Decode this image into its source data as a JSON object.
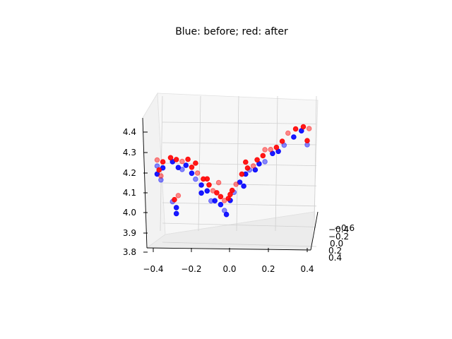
{
  "chart_data": {
    "type": "scatter",
    "projection": "3d",
    "title": "Blue: before; red: after",
    "x_ticks": [
      "−0.4",
      "−0.2",
      "0.0",
      "0.2",
      "0.4"
    ],
    "y_ticks": [
      "0.4",
      "0.2",
      "0.0",
      "−0.2",
      "−0.4",
      "−0.6"
    ],
    "z_ticks": [
      "3.8",
      "3.9",
      "4.0",
      "4.1",
      "4.2",
      "4.3",
      "4.4"
    ],
    "xlim": [
      -0.45,
      0.45
    ],
    "zlim": [
      3.8,
      4.45
    ],
    "series": [
      {
        "label": "before",
        "color": "#0000ff",
        "points": [
          {
            "x": -0.38,
            "z": 4.23
          },
          {
            "x": -0.35,
            "z": 4.22
          },
          {
            "x": -0.38,
            "z": 4.19
          },
          {
            "x": -0.36,
            "z": 4.16
          },
          {
            "x": -0.3,
            "z": 4.25
          },
          {
            "x": -0.27,
            "z": 4.22
          },
          {
            "x": -0.25,
            "z": 4.21
          },
          {
            "x": -0.23,
            "z": 4.23
          },
          {
            "x": -0.2,
            "z": 4.19
          },
          {
            "x": -0.18,
            "z": 4.16
          },
          {
            "x": -0.15,
            "z": 4.13
          },
          {
            "x": -0.12,
            "z": 4.1
          },
          {
            "x": -0.1,
            "z": 4.05
          },
          {
            "x": -0.08,
            "z": 4.05
          },
          {
            "x": -0.05,
            "z": 4.03
          },
          {
            "x": -0.03,
            "z": 4.0
          },
          {
            "x": -0.02,
            "z": 3.98
          },
          {
            "x": 0.0,
            "z": 4.05
          },
          {
            "x": 0.02,
            "z": 4.09
          },
          {
            "x": 0.05,
            "z": 4.14
          },
          {
            "x": 0.08,
            "z": 4.18
          },
          {
            "x": 0.1,
            "z": 4.2
          },
          {
            "x": 0.13,
            "z": 4.2
          },
          {
            "x": 0.15,
            "z": 4.23
          },
          {
            "x": 0.18,
            "z": 4.24
          },
          {
            "x": 0.22,
            "z": 4.28
          },
          {
            "x": 0.25,
            "z": 4.29
          },
          {
            "x": 0.28,
            "z": 4.32
          },
          {
            "x": 0.33,
            "z": 4.36
          },
          {
            "x": 0.37,
            "z": 4.39
          },
          {
            "x": 0.4,
            "z": 4.32
          },
          {
            "x": -0.28,
            "z": 4.02
          },
          {
            "x": -0.28,
            "z": 3.99
          },
          {
            "x": -0.3,
            "z": 4.05
          },
          {
            "x": -0.15,
            "z": 4.09
          },
          {
            "x": 0.07,
            "z": 4.12
          }
        ]
      },
      {
        "label": "after",
        "color": "#ff0000",
        "points": [
          {
            "x": -0.38,
            "z": 4.26
          },
          {
            "x": -0.35,
            "z": 4.25
          },
          {
            "x": -0.37,
            "z": 4.21
          },
          {
            "x": -0.36,
            "z": 4.18
          },
          {
            "x": -0.31,
            "z": 4.27
          },
          {
            "x": -0.28,
            "z": 4.26
          },
          {
            "x": -0.25,
            "z": 4.25
          },
          {
            "x": -0.22,
            "z": 4.26
          },
          {
            "x": -0.2,
            "z": 4.22
          },
          {
            "x": -0.17,
            "z": 4.19
          },
          {
            "x": -0.14,
            "z": 4.16
          },
          {
            "x": -0.11,
            "z": 4.13
          },
          {
            "x": -0.09,
            "z": 4.1
          },
          {
            "x": -0.07,
            "z": 4.09
          },
          {
            "x": -0.05,
            "z": 4.07
          },
          {
            "x": -0.03,
            "z": 4.05
          },
          {
            "x": -0.01,
            "z": 4.06
          },
          {
            "x": 0.01,
            "z": 4.1
          },
          {
            "x": 0.03,
            "z": 4.13
          },
          {
            "x": 0.06,
            "z": 4.18
          },
          {
            "x": 0.09,
            "z": 4.21
          },
          {
            "x": 0.12,
            "z": 4.22
          },
          {
            "x": 0.14,
            "z": 4.25
          },
          {
            "x": 0.17,
            "z": 4.27
          },
          {
            "x": 0.21,
            "z": 4.3
          },
          {
            "x": 0.24,
            "z": 4.31
          },
          {
            "x": 0.27,
            "z": 4.34
          },
          {
            "x": 0.3,
            "z": 4.38
          },
          {
            "x": 0.34,
            "z": 4.4
          },
          {
            "x": 0.38,
            "z": 4.41
          },
          {
            "x": 0.41,
            "z": 4.4
          },
          {
            "x": 0.4,
            "z": 4.34
          },
          {
            "x": -0.29,
            "z": 4.06
          },
          {
            "x": -0.27,
            "z": 4.08
          },
          {
            "x": -0.18,
            "z": 4.24
          },
          {
            "x": -0.12,
            "z": 4.16
          },
          {
            "x": -0.06,
            "z": 4.14
          },
          {
            "x": 0.0,
            "z": 4.08
          },
          {
            "x": 0.08,
            "z": 4.24
          },
          {
            "x": 0.18,
            "z": 4.3
          }
        ]
      }
    ]
  }
}
